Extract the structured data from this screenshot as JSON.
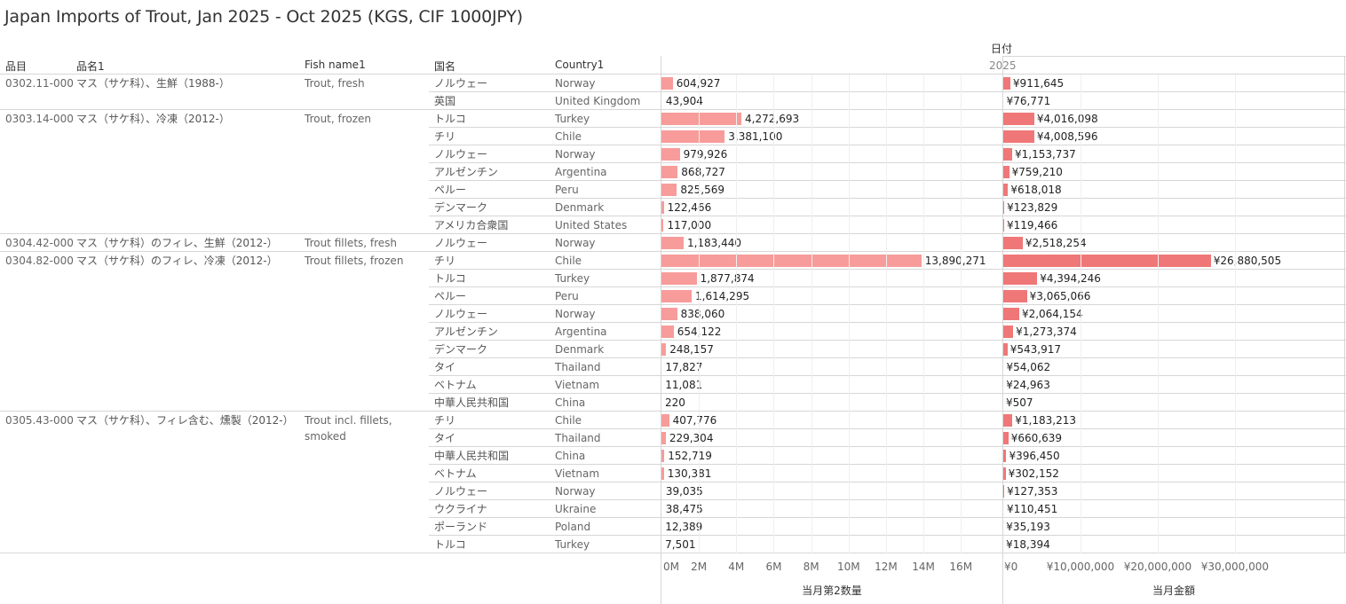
{
  "title": "Japan Imports of Trout, Jan 2025 - Oct 2025 (KGS, CIF 1000JPY)",
  "headers": {
    "code": "品目",
    "name_jp": "品名1",
    "fish_name": "Fish name1",
    "country_jp": "国名",
    "country_en": "Country1",
    "date": "日付",
    "year": "2025"
  },
  "colors": {
    "qty_bar": "#f79c9a",
    "val_bar": "#f07777",
    "grid": "#d6d6d6"
  },
  "chart_data": {
    "type": "bar",
    "orientation": "horizontal",
    "axes": [
      {
        "title": "当月第2数量",
        "min": 0,
        "max": 16700000,
        "ticks": [
          0,
          2000000,
          4000000,
          6000000,
          8000000,
          10000000,
          12000000,
          14000000,
          16000000
        ],
        "tick_labels": [
          "0M",
          "2M",
          "4M",
          "6M",
          "8M",
          "10M",
          "12M",
          "14M",
          "16M"
        ]
      },
      {
        "title": "当月金額",
        "min": 0,
        "max": 34500000,
        "ticks": [
          0,
          10000000,
          20000000,
          30000000
        ],
        "tick_labels": [
          "¥0",
          "¥10,000,000",
          "¥20,000,000",
          "¥30,000,000"
        ]
      }
    ],
    "groups": [
      {
        "code": "0302.11-000",
        "name_jp": "マス（サケ科）、生鮮（1988-）",
        "fish_name": "Trout, fresh",
        "rows": [
          {
            "country_jp": "ノルウェー",
            "country_en": "Norway",
            "qty": 604927,
            "qty_label": "604,927",
            "value": 911645,
            "value_label": "¥911,645"
          },
          {
            "country_jp": "英国",
            "country_en": "United Kingdom",
            "qty": 43904,
            "qty_label": "43,904",
            "value": 76771,
            "value_label": "¥76,771"
          }
        ]
      },
      {
        "code": "0303.14-000",
        "name_jp": "マス（サケ科）、冷凍（2012-）",
        "fish_name": "Trout, frozen",
        "rows": [
          {
            "country_jp": "トルコ",
            "country_en": "Turkey",
            "qty": 4272693,
            "qty_label": "4,272,693",
            "value": 4016098,
            "value_label": "¥4,016,098"
          },
          {
            "country_jp": "チリ",
            "country_en": "Chile",
            "qty": 3381100,
            "qty_label": "3,381,100",
            "value": 4008596,
            "value_label": "¥4,008,596"
          },
          {
            "country_jp": "ノルウェー",
            "country_en": "Norway",
            "qty": 979926,
            "qty_label": "979,926",
            "value": 1153737,
            "value_label": "¥1,153,737"
          },
          {
            "country_jp": "アルゼンチン",
            "country_en": "Argentina",
            "qty": 868727,
            "qty_label": "868,727",
            "value": 759210,
            "value_label": "¥759,210"
          },
          {
            "country_jp": "ペルー",
            "country_en": "Peru",
            "qty": 825569,
            "qty_label": "825,569",
            "value": 618018,
            "value_label": "¥618,018"
          },
          {
            "country_jp": "デンマーク",
            "country_en": "Denmark",
            "qty": 122466,
            "qty_label": "122,466",
            "value": 123829,
            "value_label": "¥123,829"
          },
          {
            "country_jp": "アメリカ合衆国",
            "country_en": "United States",
            "qty": 117000,
            "qty_label": "117,000",
            "value": 119466,
            "value_label": "¥119,466"
          }
        ]
      },
      {
        "code": "0304.42-000",
        "name_jp": "マス（サケ科）のフィレ、生鮮（2012-）",
        "fish_name": "Trout fillets, fresh",
        "rows": [
          {
            "country_jp": "ノルウェー",
            "country_en": "Norway",
            "qty": 1183440,
            "qty_label": "1,183,440",
            "value": 2518254,
            "value_label": "¥2,518,254"
          }
        ]
      },
      {
        "code": "0304.82-000",
        "name_jp": "マス（サケ科）のフィレ、冷凍（2012-）",
        "fish_name": "Trout fillets, frozen",
        "rows": [
          {
            "country_jp": "チリ",
            "country_en": "Chile",
            "qty": 13890271,
            "qty_label": "13,890,271",
            "value": 26880505,
            "value_label": "¥26,880,505"
          },
          {
            "country_jp": "トルコ",
            "country_en": "Turkey",
            "qty": 1877874,
            "qty_label": "1,877,874",
            "value": 4394246,
            "value_label": "¥4,394,246"
          },
          {
            "country_jp": "ペルー",
            "country_en": "Peru",
            "qty": 1614295,
            "qty_label": "1,614,295",
            "value": 3065066,
            "value_label": "¥3,065,066"
          },
          {
            "country_jp": "ノルウェー",
            "country_en": "Norway",
            "qty": 838060,
            "qty_label": "838,060",
            "value": 2064154,
            "value_label": "¥2,064,154"
          },
          {
            "country_jp": "アルゼンチン",
            "country_en": "Argentina",
            "qty": 654122,
            "qty_label": "654,122",
            "value": 1273374,
            "value_label": "¥1,273,374"
          },
          {
            "country_jp": "デンマーク",
            "country_en": "Denmark",
            "qty": 248157,
            "qty_label": "248,157",
            "value": 543917,
            "value_label": "¥543,917"
          },
          {
            "country_jp": "タイ",
            "country_en": "Thailand",
            "qty": 17827,
            "qty_label": "17,827",
            "value": 54062,
            "value_label": "¥54,062"
          },
          {
            "country_jp": "ベトナム",
            "country_en": "Vietnam",
            "qty": 11081,
            "qty_label": "11,081",
            "value": 24963,
            "value_label": "¥24,963"
          },
          {
            "country_jp": "中華人民共和国",
            "country_en": "China",
            "qty": 220,
            "qty_label": "220",
            "value": 507,
            "value_label": "¥507"
          }
        ]
      },
      {
        "code": "0305.43-000",
        "name_jp": "マス（サケ科）、フィレ含む、燻製（2012-）",
        "fish_name": "Trout incl. fillets, smoked",
        "rows": [
          {
            "country_jp": "チリ",
            "country_en": "Chile",
            "qty": 407776,
            "qty_label": "407,776",
            "value": 1183213,
            "value_label": "¥1,183,213"
          },
          {
            "country_jp": "タイ",
            "country_en": "Thailand",
            "qty": 229304,
            "qty_label": "229,304",
            "value": 660639,
            "value_label": "¥660,639"
          },
          {
            "country_jp": "中華人民共和国",
            "country_en": "China",
            "qty": 152719,
            "qty_label": "152,719",
            "value": 396450,
            "value_label": "¥396,450"
          },
          {
            "country_jp": "ベトナム",
            "country_en": "Vietnam",
            "qty": 130381,
            "qty_label": "130,381",
            "value": 302152,
            "value_label": "¥302,152"
          },
          {
            "country_jp": "ノルウェー",
            "country_en": "Norway",
            "qty": 39035,
            "qty_label": "39,035",
            "value": 127353,
            "value_label": "¥127,353"
          },
          {
            "country_jp": "ウクライナ",
            "country_en": "Ukraine",
            "qty": 38475,
            "qty_label": "38,475",
            "value": 110451,
            "value_label": "¥110,451"
          },
          {
            "country_jp": "ポーランド",
            "country_en": "Poland",
            "qty": 12389,
            "qty_label": "12,389",
            "value": 35193,
            "value_label": "¥35,193"
          },
          {
            "country_jp": "トルコ",
            "country_en": "Turkey",
            "qty": 7501,
            "qty_label": "7,501",
            "value": 18394,
            "value_label": "¥18,394"
          }
        ]
      }
    ]
  }
}
